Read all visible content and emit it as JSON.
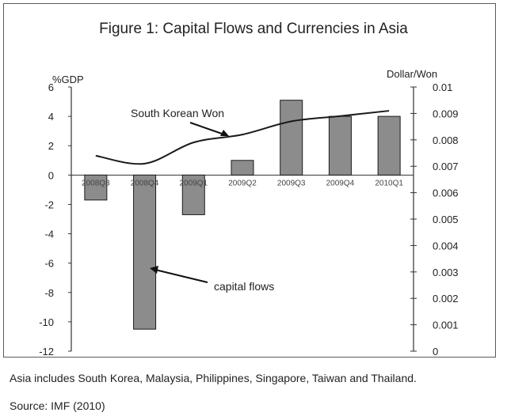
{
  "chart_data": {
    "type": "bar",
    "title": "Figure 1: Capital Flows and Currencies in Asia",
    "categories": [
      "2008Q3",
      "2008Q4",
      "2009Q1",
      "2009Q2",
      "2009Q3",
      "2009Q4",
      "2010Q1"
    ],
    "y_left": {
      "label": "%GDP",
      "lim": [
        -12,
        6
      ],
      "ticks": [
        6,
        4,
        2,
        0,
        -2,
        -4,
        -6,
        -8,
        -10,
        -12
      ]
    },
    "y_right": {
      "label": "Dollar/Won",
      "lim": [
        0,
        0.01
      ],
      "ticks": [
        0.01,
        0.009,
        0.008,
        0.007,
        0.006,
        0.005,
        0.004,
        0.003,
        0.002,
        0.001,
        0
      ]
    },
    "series": [
      {
        "name": "capital flows",
        "type": "bar",
        "axis": "left",
        "values": [
          -1.7,
          -10.5,
          -2.7,
          1.0,
          5.1,
          4.0,
          4.0
        ]
      },
      {
        "name": "South Korean Won",
        "type": "line",
        "axis": "right",
        "values": [
          0.0074,
          0.0071,
          0.0079,
          0.0082,
          0.0087,
          0.0089,
          0.0091
        ]
      }
    ],
    "grid": false,
    "annotations": [
      "South Korean Won",
      "capital flows"
    ],
    "colors": {
      "bar_fill": "#8c8c8c",
      "bar_edge": "#1a1a1a",
      "line": "#1a1a1a"
    }
  },
  "footnote": "Asia includes South Korea, Malaysia, Philippines, Singapore, Taiwan and Thailand.",
  "source": "Source: IMF (2010)"
}
